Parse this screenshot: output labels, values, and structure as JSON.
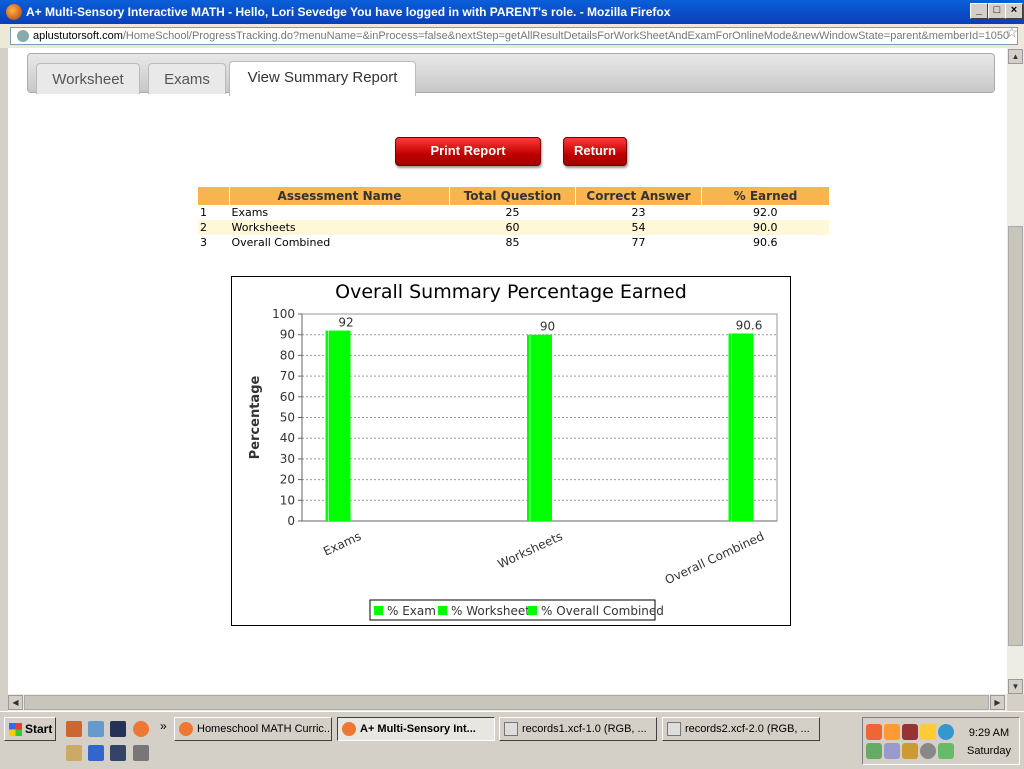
{
  "window": {
    "title": "A+ Multi-Sensory Interactive MATH - Hello, Lori Sevedge You have logged in with PARENT's role. - Mozilla Firefox",
    "url_domain": "aplustutorsoft.com",
    "url_path": "/HomeSchool/ProgressTracking.do?menuName=&inProcess=false&nextStep=getAllResultDetailsForWorkSheetAndExamForOnlineMode&newWindowState=parent&memberId=1050"
  },
  "tabs": [
    {
      "label": "Worksheet"
    },
    {
      "label": "Exams"
    },
    {
      "label": "View Summary Report",
      "active": true
    }
  ],
  "buttons": {
    "print": "Print Report",
    "return": "Return"
  },
  "table": {
    "headers": [
      "",
      "Assessment Name",
      "Total Question",
      "Correct Answer",
      "% Earned"
    ],
    "rows": [
      {
        "num": "1",
        "name": "Exams",
        "total": "25",
        "correct": "23",
        "earned": "92.0"
      },
      {
        "num": "2",
        "name": "Worksheets",
        "total": "60",
        "correct": "54",
        "earned": "90.0"
      },
      {
        "num": "3",
        "name": "Overall Combined",
        "total": "85",
        "correct": "77",
        "earned": "90.6"
      }
    ]
  },
  "chart_data": {
    "type": "bar",
    "title": "Overall Summary Percentage Earned",
    "xlabel": "",
    "ylabel": "Percentage",
    "categories": [
      "Exams",
      "Worksheets",
      "Overall Combined"
    ],
    "values": [
      92,
      90,
      90.6
    ],
    "value_labels": [
      "92",
      "90",
      "90.6"
    ],
    "ylim": [
      0,
      100
    ],
    "yticks": [
      0,
      10,
      20,
      30,
      40,
      50,
      60,
      70,
      80,
      90,
      100
    ],
    "grid": true,
    "legend_position": "bottom",
    "legend": [
      "% Exam",
      "% Worksheet",
      "% Overall Combined"
    ],
    "bar_color": "#00ff00"
  },
  "taskbar": {
    "start": "Start",
    "buttons": [
      {
        "label": "Homeschool MATH Curric..."
      },
      {
        "label": "A+ Multi-Sensory Int...",
        "pressed": true
      },
      {
        "label": "records1.xcf-1.0 (RGB, ..."
      },
      {
        "label": "records2.xcf-2.0 (RGB, ..."
      }
    ],
    "clock": "9:29 AM",
    "day": "Saturday"
  },
  "colors": {
    "titlebar": "#0a4fc8",
    "table_header": "#f8b54e",
    "button_red": "#cc0000"
  }
}
